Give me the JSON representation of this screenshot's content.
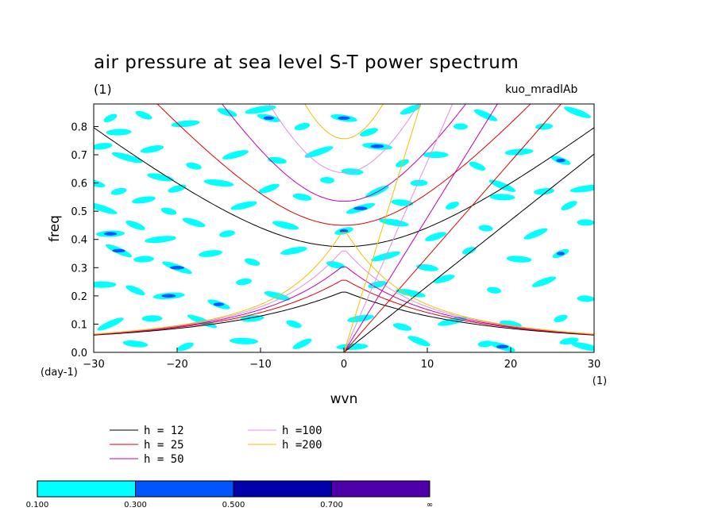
{
  "chart_data": {
    "type": "contour",
    "title": "air pressure at sea level S-T power spectrum",
    "subtitle_left": "(1)",
    "subtitle_right": "kuo_mradlAb",
    "xlabel": "wvn",
    "x_unit": "(1)",
    "ylabel": "freq",
    "y_unit": "(day-1)",
    "xlim": [
      -30,
      30
    ],
    "ylim": [
      0.0,
      0.88
    ],
    "x_ticks": [
      "-30",
      "-20",
      "-10",
      "0",
      "10",
      "20",
      "30"
    ],
    "y_ticks": [
      "0.0",
      "0.1",
      "0.2",
      "0.3",
      "0.4",
      "0.5",
      "0.6",
      "0.7",
      "0.8"
    ],
    "dispersion_curves": [
      {
        "name": "h = 12",
        "color": "#000000"
      },
      {
        "name": "h = 25",
        "color": "#dd0000"
      },
      {
        "name": "h = 50",
        "color": "#c000b0"
      },
      {
        "name": "h =100",
        "color": "#e090e0"
      },
      {
        "name": "h =200",
        "color": "#f0c000"
      }
    ],
    "colorbar": {
      "levels": [
        "0.100",
        "0.300",
        "0.500",
        "0.700",
        "∞"
      ],
      "colors": [
        "#00ffff",
        "#0055ff",
        "#0000aa",
        "#5000a8"
      ]
    },
    "contour_patches": [
      {
        "x": -28,
        "y": 0.83,
        "l": 1
      },
      {
        "x": -27,
        "y": 0.78,
        "l": 1
      },
      {
        "x": -24,
        "y": 0.84,
        "l": 1
      },
      {
        "x": -19,
        "y": 0.81,
        "l": 1
      },
      {
        "x": -14,
        "y": 0.85,
        "l": 1
      },
      {
        "x": -10,
        "y": 0.86,
        "l": 1
      },
      {
        "x": -9,
        "y": 0.83,
        "l": 2
      },
      {
        "x": -5,
        "y": 0.8,
        "l": 1
      },
      {
        "x": 0,
        "y": 0.83,
        "l": 2
      },
      {
        "x": 3,
        "y": 0.78,
        "l": 1
      },
      {
        "x": 4,
        "y": 0.73,
        "l": 2
      },
      {
        "x": 8,
        "y": 0.86,
        "l": 1
      },
      {
        "x": 14,
        "y": 0.8,
        "l": 1
      },
      {
        "x": 17,
        "y": 0.84,
        "l": 1
      },
      {
        "x": 24,
        "y": 0.8,
        "l": 1
      },
      {
        "x": 28,
        "y": 0.85,
        "l": 1
      },
      {
        "x": -29,
        "y": 0.73,
        "l": 1
      },
      {
        "x": -26,
        "y": 0.69,
        "l": 1
      },
      {
        "x": -23,
        "y": 0.72,
        "l": 1
      },
      {
        "x": -18,
        "y": 0.66,
        "l": 1
      },
      {
        "x": -13,
        "y": 0.7,
        "l": 1
      },
      {
        "x": -8,
        "y": 0.68,
        "l": 1
      },
      {
        "x": -3,
        "y": 0.71,
        "l": 1
      },
      {
        "x": 1,
        "y": 0.64,
        "l": 1
      },
      {
        "x": 7,
        "y": 0.67,
        "l": 1
      },
      {
        "x": 11,
        "y": 0.7,
        "l": 1
      },
      {
        "x": 16,
        "y": 0.66,
        "l": 1
      },
      {
        "x": 21,
        "y": 0.71,
        "l": 1
      },
      {
        "x": 26,
        "y": 0.68,
        "l": 2
      },
      {
        "x": 29,
        "y": 0.58,
        "l": 1
      },
      {
        "x": -30,
        "y": 0.6,
        "l": 1
      },
      {
        "x": -27,
        "y": 0.57,
        "l": 1
      },
      {
        "x": -22,
        "y": 0.62,
        "l": 1
      },
      {
        "x": -20,
        "y": 0.58,
        "l": 1
      },
      {
        "x": -15,
        "y": 0.6,
        "l": 1
      },
      {
        "x": -9,
        "y": 0.58,
        "l": 1
      },
      {
        "x": -2,
        "y": 0.61,
        "l": 1
      },
      {
        "x": 4,
        "y": 0.57,
        "l": 1
      },
      {
        "x": 9,
        "y": 0.6,
        "l": 1
      },
      {
        "x": 19,
        "y": 0.59,
        "l": 1
      },
      {
        "x": 24,
        "y": 0.57,
        "l": 1
      },
      {
        "x": -29,
        "y": 0.51,
        "l": 1
      },
      {
        "x": -24,
        "y": 0.54,
        "l": 1
      },
      {
        "x": -21,
        "y": 0.5,
        "l": 1
      },
      {
        "x": -12,
        "y": 0.52,
        "l": 1
      },
      {
        "x": -5,
        "y": 0.55,
        "l": 1
      },
      {
        "x": 2,
        "y": 0.51,
        "l": 2
      },
      {
        "x": 7,
        "y": 0.53,
        "l": 1
      },
      {
        "x": 13,
        "y": 0.52,
        "l": 1
      },
      {
        "x": 19,
        "y": 0.55,
        "l": 1
      },
      {
        "x": 27,
        "y": 0.52,
        "l": 1
      },
      {
        "x": -28,
        "y": 0.42,
        "l": 2
      },
      {
        "x": -25,
        "y": 0.45,
        "l": 1
      },
      {
        "x": -22,
        "y": 0.4,
        "l": 1
      },
      {
        "x": -18,
        "y": 0.46,
        "l": 1
      },
      {
        "x": -14,
        "y": 0.42,
        "l": 1
      },
      {
        "x": -7,
        "y": 0.45,
        "l": 1
      },
      {
        "x": 0,
        "y": 0.43,
        "l": 2
      },
      {
        "x": 6,
        "y": 0.46,
        "l": 1
      },
      {
        "x": 11,
        "y": 0.41,
        "l": 1
      },
      {
        "x": 17,
        "y": 0.44,
        "l": 1
      },
      {
        "x": 23,
        "y": 0.42,
        "l": 1
      },
      {
        "x": 29,
        "y": 0.46,
        "l": 1
      },
      {
        "x": -27,
        "y": 0.36,
        "l": 2
      },
      {
        "x": -24,
        "y": 0.33,
        "l": 1
      },
      {
        "x": -20,
        "y": 0.3,
        "l": 2
      },
      {
        "x": -16,
        "y": 0.35,
        "l": 1
      },
      {
        "x": -11,
        "y": 0.32,
        "l": 1
      },
      {
        "x": -6,
        "y": 0.36,
        "l": 1
      },
      {
        "x": -1,
        "y": 0.31,
        "l": 1
      },
      {
        "x": 5,
        "y": 0.34,
        "l": 1
      },
      {
        "x": 10,
        "y": 0.3,
        "l": 1
      },
      {
        "x": 15,
        "y": 0.36,
        "l": 1
      },
      {
        "x": 21,
        "y": 0.33,
        "l": 1
      },
      {
        "x": 26,
        "y": 0.35,
        "l": 2
      },
      {
        "x": -29,
        "y": 0.24,
        "l": 1
      },
      {
        "x": -25,
        "y": 0.22,
        "l": 1
      },
      {
        "x": -21,
        "y": 0.2,
        "l": 2
      },
      {
        "x": -15,
        "y": 0.17,
        "l": 2
      },
      {
        "x": -12,
        "y": 0.25,
        "l": 1
      },
      {
        "x": -8,
        "y": 0.2,
        "l": 1
      },
      {
        "x": 4,
        "y": 0.24,
        "l": 1
      },
      {
        "x": 8,
        "y": 0.21,
        "l": 1
      },
      {
        "x": 12,
        "y": 0.26,
        "l": 1
      },
      {
        "x": 18,
        "y": 0.22,
        "l": 1
      },
      {
        "x": 24,
        "y": 0.25,
        "l": 1
      },
      {
        "x": 29,
        "y": 0.19,
        "l": 1
      },
      {
        "x": -28,
        "y": 0.1,
        "l": 1
      },
      {
        "x": -23,
        "y": 0.12,
        "l": 1
      },
      {
        "x": -17,
        "y": 0.11,
        "l": 1
      },
      {
        "x": -11,
        "y": 0.12,
        "l": 1
      },
      {
        "x": -6,
        "y": 0.1,
        "l": 1
      },
      {
        "x": 2,
        "y": 0.12,
        "l": 1
      },
      {
        "x": 7,
        "y": 0.09,
        "l": 1
      },
      {
        "x": 13,
        "y": 0.11,
        "l": 1
      },
      {
        "x": 20,
        "y": 0.1,
        "l": 1
      },
      {
        "x": 26,
        "y": 0.12,
        "l": 1
      },
      {
        "x": -25,
        "y": 0.03,
        "l": 1
      },
      {
        "x": -19,
        "y": 0.02,
        "l": 1
      },
      {
        "x": -12,
        "y": 0.04,
        "l": 1
      },
      {
        "x": -5,
        "y": 0.03,
        "l": 1
      },
      {
        "x": 1,
        "y": 0.02,
        "l": 1
      },
      {
        "x": 9,
        "y": 0.04,
        "l": 1
      },
      {
        "x": 17,
        "y": 0.03,
        "l": 1
      },
      {
        "x": 19,
        "y": 0.02,
        "l": 2
      },
      {
        "x": 27,
        "y": 0.04,
        "l": 1
      },
      {
        "x": 29,
        "y": 0.02,
        "l": 1
      }
    ]
  }
}
